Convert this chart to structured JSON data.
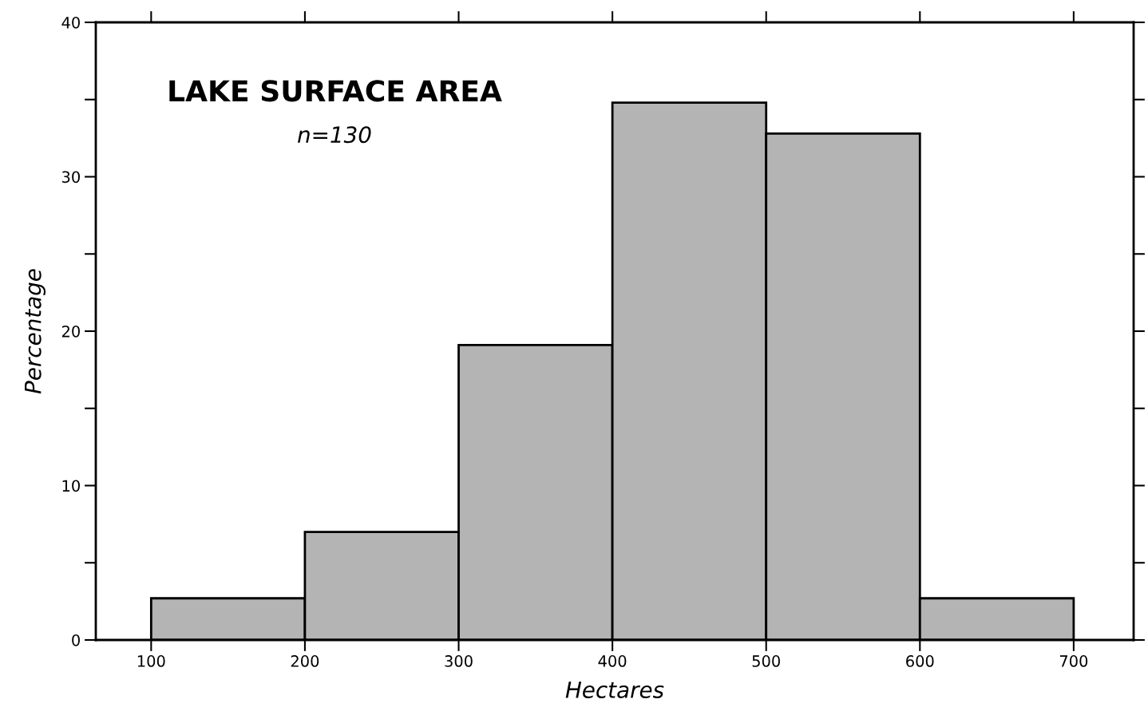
{
  "chart_data": {
    "type": "histogram",
    "title": "LAKE SURFACE AREA",
    "subtitle": "n=130",
    "xlabel": "Hectares",
    "ylabel": "Percentage",
    "bins": [
      100,
      200,
      300,
      400,
      500,
      600,
      700
    ],
    "values": [
      2.7,
      7.0,
      19.1,
      34.8,
      32.8,
      2.7
    ],
    "color": "#b4b4b4",
    "xlim": [
      64,
      739
    ],
    "xticks": [
      100,
      200,
      300,
      400,
      500,
      600,
      700
    ],
    "ylim": [
      0,
      40
    ],
    "yticks": [
      0,
      {
        "value": 5,
        "label": null
      },
      10,
      {
        "value": 15,
        "label": null
      },
      20,
      {
        "value": 25,
        "label": null
      },
      30,
      {
        "value": 35,
        "label": null
      },
      40
    ],
    "grid": false,
    "legend": false
  }
}
